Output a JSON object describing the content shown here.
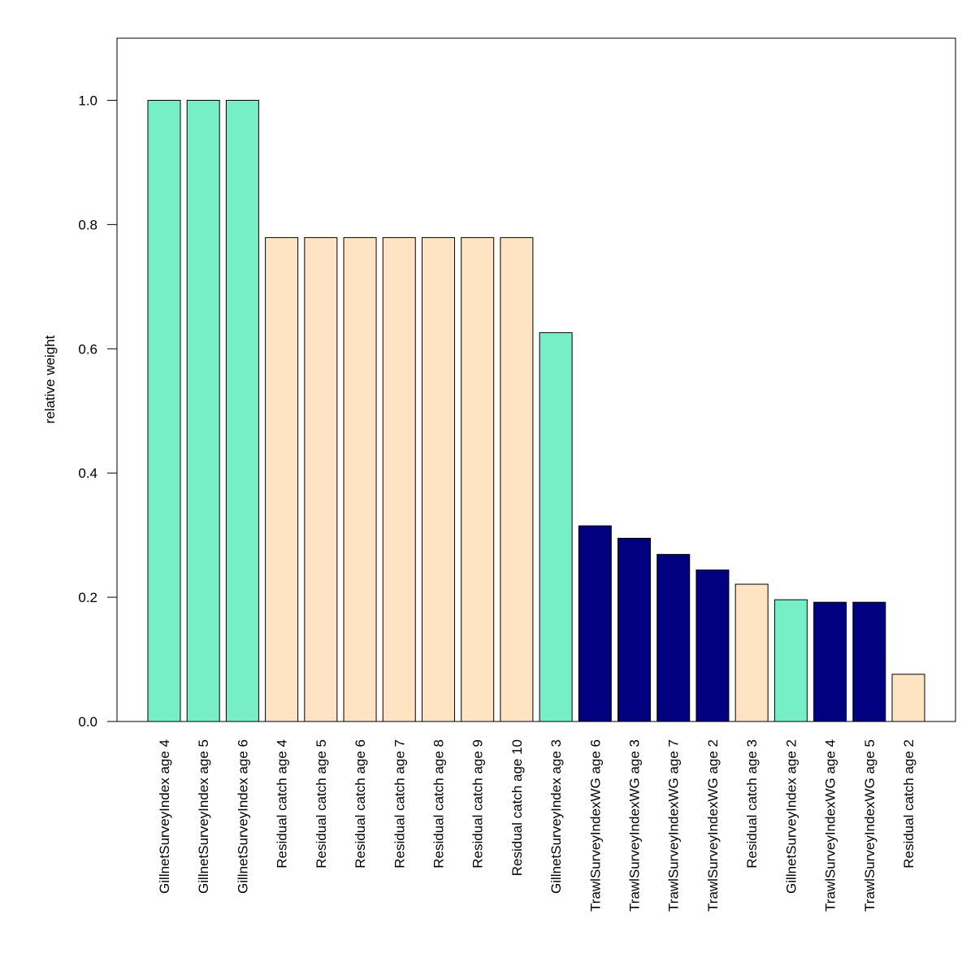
{
  "chart_data": {
    "type": "bar",
    "title": "",
    "xlabel": "",
    "ylabel": "relative weight",
    "ylim": [
      0,
      1.1
    ],
    "yticks": [
      0.0,
      0.2,
      0.4,
      0.6,
      0.8,
      1.0
    ],
    "ytick_labels": [
      "0.0",
      "0.2",
      "0.4",
      "0.6",
      "0.8",
      "1.0"
    ],
    "grid": false,
    "legend": "none",
    "categories": [
      "GillnetSurveyIndex age 4",
      "GillnetSurveyIndex age 5",
      "GillnetSurveyIndex age 6",
      "Residual catch age 4",
      "Residual catch age 5",
      "Residual catch age 6",
      "Residual catch age 7",
      "Residual catch age 8",
      "Residual catch age 9",
      "Residual catch age 10",
      "GillnetSurveyIndex age 3",
      "TrawlSurveyIndexWG age 6",
      "TrawlSurveyIndexWG age 3",
      "TrawlSurveyIndexWG age 7",
      "TrawlSurveyIndexWG age 2",
      "Residual catch age 3",
      "GillnetSurveyIndex age 2",
      "TrawlSurveyIndexWG age 4",
      "TrawlSurveyIndexWG age 5",
      "Residual catch age 2"
    ],
    "values": [
      1.0,
      1.0,
      1.0,
      0.779,
      0.779,
      0.779,
      0.779,
      0.779,
      0.779,
      0.779,
      0.626,
      0.315,
      0.295,
      0.269,
      0.244,
      0.221,
      0.196,
      0.192,
      0.192,
      0.076
    ],
    "bar_colors": [
      "#76EEC6",
      "#76EEC6",
      "#76EEC6",
      "#FFE4C4",
      "#FFE4C4",
      "#FFE4C4",
      "#FFE4C4",
      "#FFE4C4",
      "#FFE4C4",
      "#FFE4C4",
      "#76EEC6",
      "#000080",
      "#000080",
      "#000080",
      "#000080",
      "#FFE4C4",
      "#76EEC6",
      "#000080",
      "#000080",
      "#FFE4C4"
    ]
  }
}
